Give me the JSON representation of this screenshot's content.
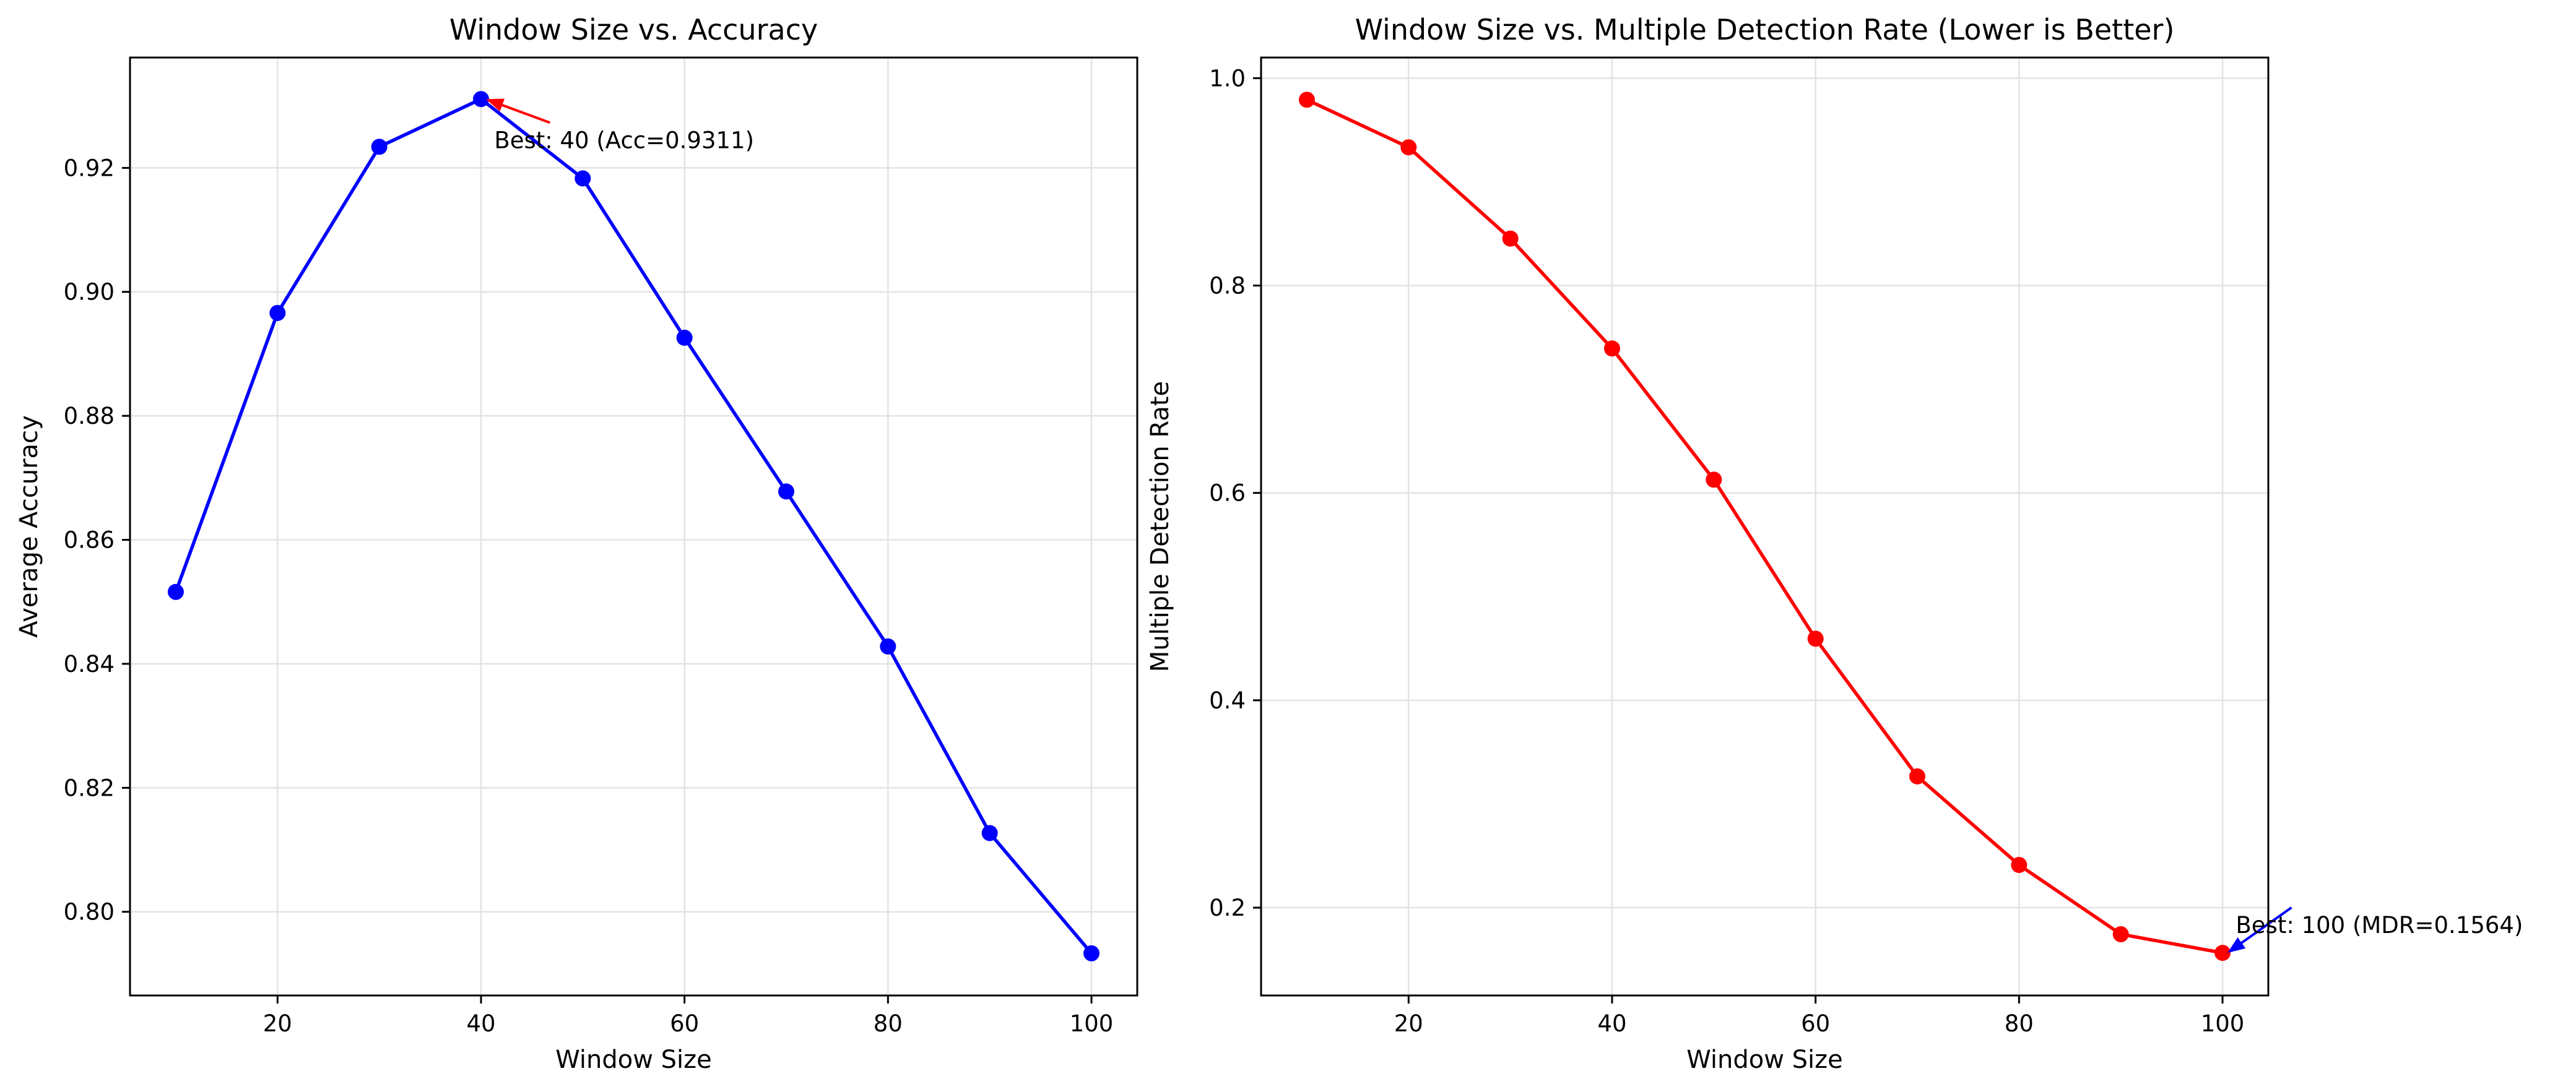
{
  "chart_data": [
    {
      "type": "line",
      "title": "Window Size vs. Accuracy",
      "xlabel": "Window Size",
      "ylabel": "Average Accuracy",
      "xlim": [
        5.5,
        104.5
      ],
      "ylim": [
        0.7865,
        0.9378
      ],
      "xticks": [
        20,
        40,
        60,
        80,
        100
      ],
      "xtick_labels": [
        "20",
        "40",
        "60",
        "80",
        "100"
      ],
      "yticks": [
        0.8,
        0.82,
        0.84,
        0.86,
        0.88,
        0.9,
        0.92
      ],
      "ytick_labels": [
        "0.80",
        "0.82",
        "0.84",
        "0.86",
        "0.88",
        "0.90",
        "0.92"
      ],
      "grid": true,
      "series": [
        {
          "color": "#0000ff",
          "x": [
            10,
            20,
            30,
            40,
            50,
            60,
            70,
            80,
            90,
            100
          ],
          "y": [
            0.8516,
            0.8966,
            0.9234,
            0.9311,
            0.9183,
            0.8926,
            0.8678,
            0.8428,
            0.8127,
            0.7933
          ]
        }
      ],
      "annotation": {
        "text": "Best: 40 (Acc=0.9311)",
        "x": 40,
        "y": 0.9311,
        "text_x": 41.3,
        "text_y": 0.9245,
        "arrow_color": "#ff0000"
      }
    },
    {
      "type": "line",
      "title": "Window Size vs. Multiple Detection Rate (Lower is Better)",
      "xlabel": "Window Size",
      "ylabel": "Multiple Detection Rate",
      "xlim": [
        5.5,
        104.5
      ],
      "ylim": [
        0.1153,
        1.0199
      ],
      "xticks": [
        20,
        40,
        60,
        80,
        100
      ],
      "xtick_labels": [
        "20",
        "40",
        "60",
        "80",
        "100"
      ],
      "yticks": [
        0.2,
        0.4,
        0.6,
        0.8,
        1.0
      ],
      "ytick_labels": [
        "0.2",
        "0.4",
        "0.6",
        "0.8",
        "1.0"
      ],
      "grid": true,
      "series": [
        {
          "color": "#ff0000",
          "x": [
            10,
            20,
            30,
            40,
            50,
            60,
            70,
            80,
            90,
            100
          ],
          "y": [
            0.9792,
            0.9333,
            0.8453,
            0.7393,
            0.6128,
            0.4594,
            0.3266,
            0.2412,
            0.1744,
            0.1564
          ]
        }
      ],
      "annotation": {
        "text": "Best: 100 (MDR=0.1564)",
        "x": 100,
        "y": 0.1564,
        "text_x": 101.3,
        "text_y": 0.1834,
        "arrow_color": "#0000ff"
      }
    }
  ]
}
